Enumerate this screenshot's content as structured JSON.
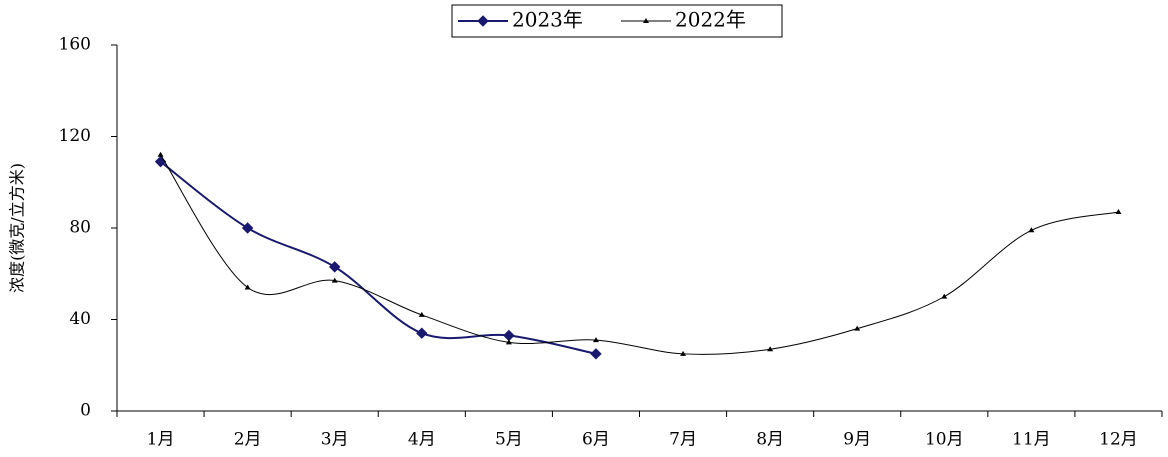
{
  "chart_data": {
    "type": "line",
    "y_label": "浓度(微克/立方米)",
    "categories": [
      "1月",
      "2月",
      "3月",
      "4月",
      "5月",
      "6月",
      "7月",
      "8月",
      "9月",
      "10月",
      "11月",
      "12月"
    ],
    "series": [
      {
        "name": "2023年",
        "color": "#191970",
        "marker": "diamond",
        "values": [
          109,
          80,
          63,
          34,
          33,
          25,
          null,
          null,
          null,
          null,
          null,
          null
        ]
      },
      {
        "name": "2022年",
        "color": "#000000",
        "marker": "triangle",
        "values": [
          112,
          54,
          57,
          42,
          30,
          31,
          25,
          27,
          36,
          50,
          79,
          87
        ]
      }
    ],
    "ylim": [
      0,
      160
    ],
    "yticks": [
      0,
      40,
      80,
      120,
      160
    ],
    "legend": "top",
    "grid": false
  }
}
